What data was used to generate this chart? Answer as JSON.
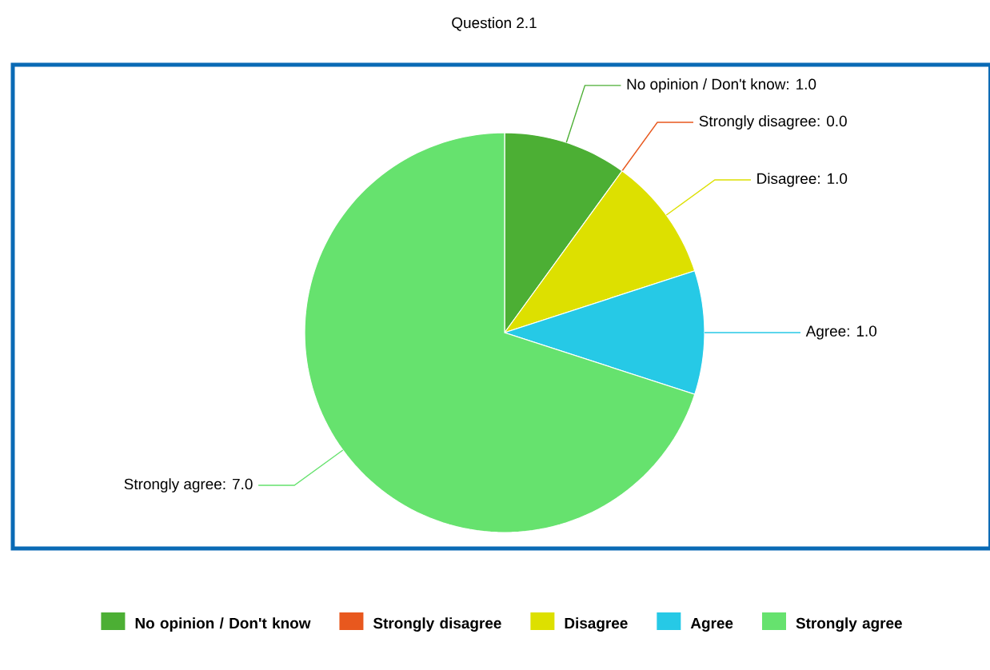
{
  "chart_data": {
    "type": "pie",
    "title": "Question 2.1",
    "categories": [
      "No opinion / Don't know",
      "Strongly disagree",
      "Disagree",
      "Agree",
      "Strongly agree"
    ],
    "values": [
      1.0,
      0.0,
      1.0,
      1.0,
      7.0
    ],
    "colors": [
      "#4caf34",
      "#e8581e",
      "#dde000",
      "#26c9e6",
      "#66e26e"
    ],
    "value_labels": [
      "No opinion / Don't know: 1.0",
      "Strongly disagree: 0.0",
      "Disagree: 1.0",
      "Agree: 1.0",
      "Strongly agree: 7.0"
    ],
    "legend": "bottom"
  }
}
